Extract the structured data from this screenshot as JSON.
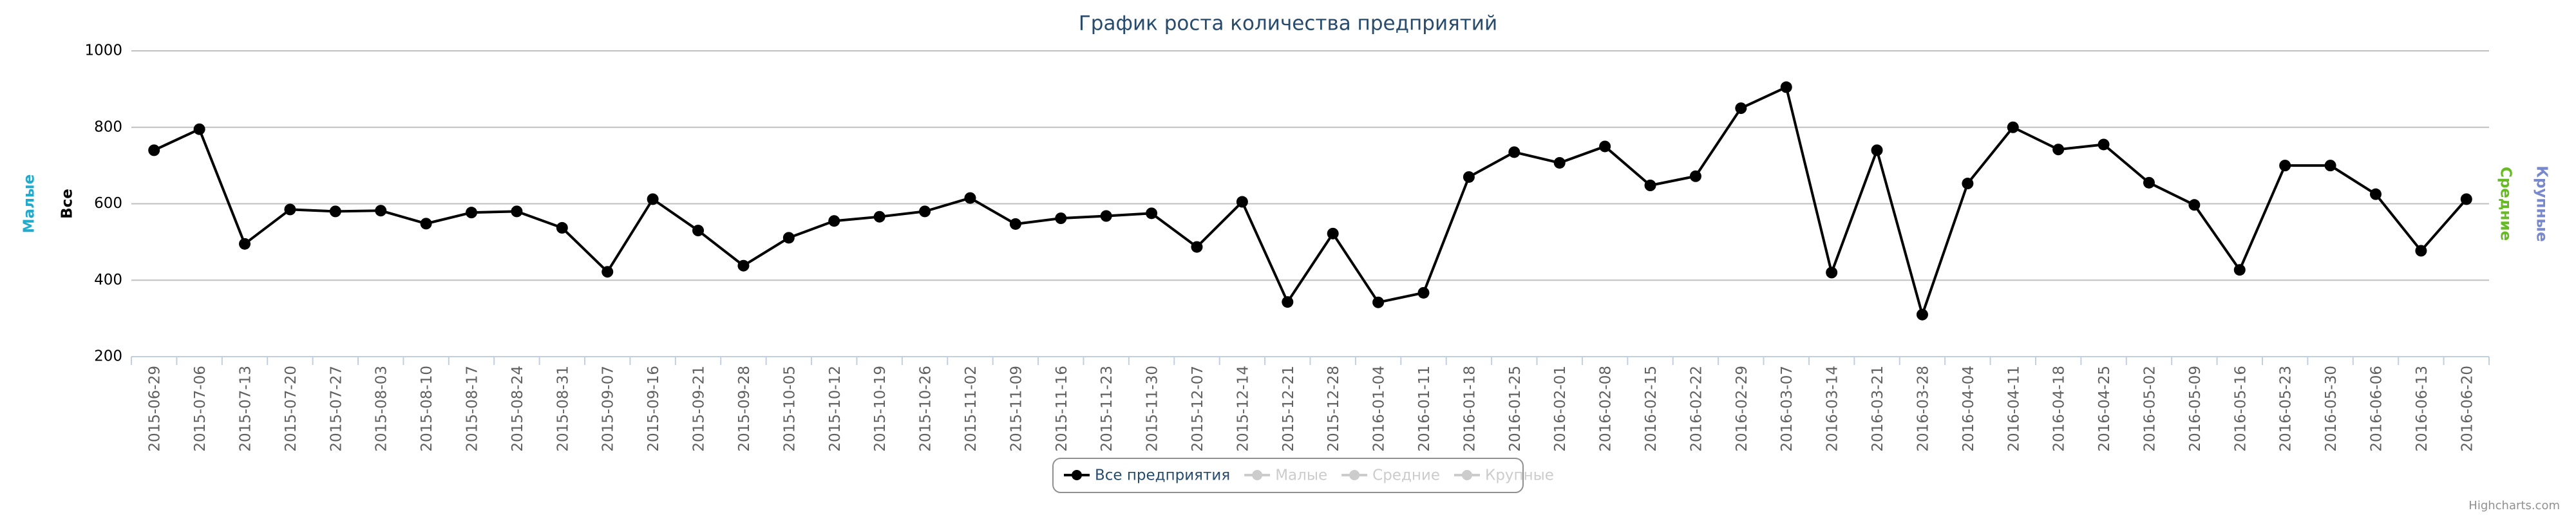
{
  "chart_data": {
    "type": "line",
    "title": "График роста количества предприятий",
    "categories": [
      "2015-06-29",
      "2015-07-06",
      "2015-07-13",
      "2015-07-20",
      "2015-07-27",
      "2015-08-03",
      "2015-08-10",
      "2015-08-17",
      "2015-08-24",
      "2015-08-31",
      "2015-09-07",
      "2015-09-16",
      "2015-09-21",
      "2015-09-28",
      "2015-10-05",
      "2015-10-12",
      "2015-10-19",
      "2015-10-26",
      "2015-11-02",
      "2015-11-09",
      "2015-11-16",
      "2015-11-23",
      "2015-11-30",
      "2015-12-07",
      "2015-12-14",
      "2015-12-21",
      "2015-12-28",
      "2016-01-04",
      "2016-01-11",
      "2016-01-18",
      "2016-01-25",
      "2016-02-01",
      "2016-02-08",
      "2016-02-15",
      "2016-02-22",
      "2016-02-29",
      "2016-03-07",
      "2016-03-14",
      "2016-03-21",
      "2016-03-28",
      "2016-04-04",
      "2016-04-11",
      "2016-04-18",
      "2016-04-25",
      "2016-05-02",
      "2016-05-09",
      "2016-05-16",
      "2016-05-23",
      "2016-05-30",
      "2016-06-06",
      "2016-06-13",
      "2016-06-20"
    ],
    "series": [
      {
        "name": "Все предприятия",
        "color": "#000000",
        "visible": true,
        "values": [
          740,
          795,
          495,
          585,
          580,
          582,
          548,
          577,
          580,
          537,
          422,
          612,
          530,
          438,
          511,
          555,
          566,
          580,
          615,
          547,
          562,
          568,
          575,
          487,
          605,
          343,
          522,
          342,
          367,
          670,
          735,
          707,
          750,
          648,
          672,
          850,
          905,
          420,
          740,
          310,
          653,
          800,
          742,
          755,
          655,
          597,
          427,
          700,
          700,
          625,
          477,
          612
        ]
      },
      {
        "name": "Малые",
        "color": "#cccccc",
        "visible": false
      },
      {
        "name": "Средние",
        "color": "#cccccc",
        "visible": false
      },
      {
        "name": "Крупные",
        "color": "#cccccc",
        "visible": false
      }
    ],
    "axis_titles": [
      {
        "text": "Малые",
        "color": "#22aacc",
        "side": "left"
      },
      {
        "text": "Все",
        "color": "#000000",
        "side": "left"
      },
      {
        "text": "Средние",
        "color": "#66bb22",
        "side": "right"
      },
      {
        "text": "Крупные",
        "color": "#7788cc",
        "side": "right"
      }
    ],
    "ylim": [
      200,
      1000
    ],
    "yticks": [
      200,
      400,
      600,
      800,
      1000
    ],
    "grid": true,
    "credits": "Highcharts.com"
  }
}
